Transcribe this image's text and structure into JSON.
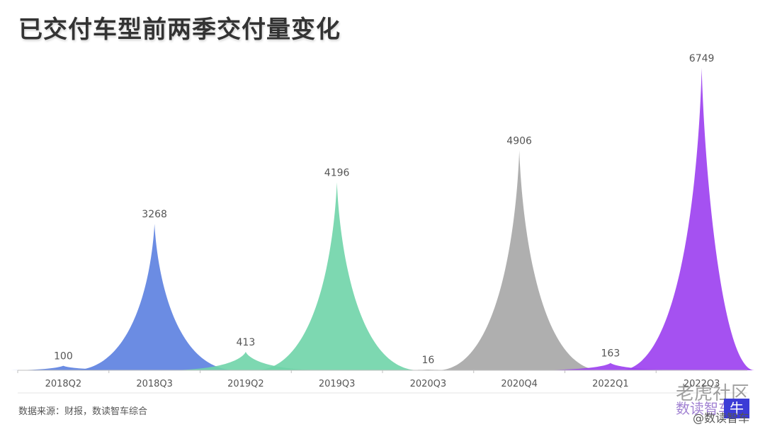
{
  "title": "已交付车型前两季交付量变化",
  "source": "数据来源：财报，数读智车综合",
  "watermark": {
    "line1": "老虎社区",
    "brand": "数读智车",
    "line2": "@数读智车",
    "block": "牛"
  },
  "chart_data": {
    "type": "area",
    "categories": [
      "2018Q2",
      "2018Q3",
      "2019Q2",
      "2019Q3",
      "2020Q3",
      "2020Q4",
      "2022Q1",
      "2022Q3"
    ],
    "values": [
      100,
      3268,
      413,
      4196,
      16,
      4906,
      163,
      6749
    ],
    "colors": [
      "#5b7fe0",
      "#5b7fe0",
      "#6fd4a8",
      "#6fd4a8",
      "#a6a6a6",
      "#a6a6a6",
      "#9b3ef0",
      "#9b3ef0"
    ],
    "ylim": [
      0,
      7000
    ],
    "grid": false,
    "legend": "none"
  }
}
